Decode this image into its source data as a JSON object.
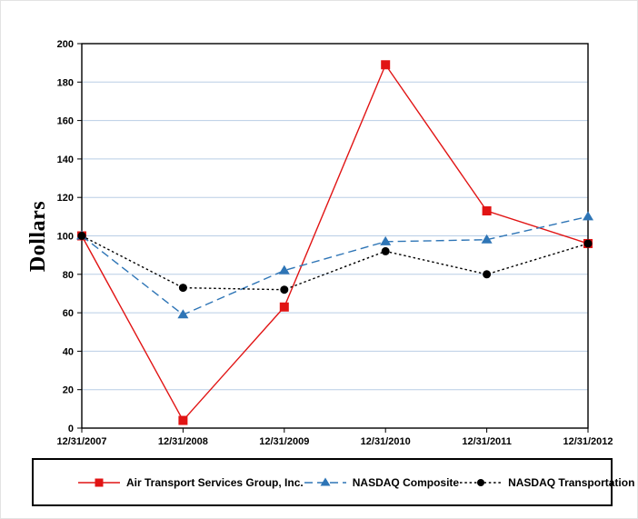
{
  "chart_data": {
    "type": "line",
    "title": "",
    "xlabel": "",
    "ylabel": "Dollars",
    "categories": [
      "12/31/2007",
      "12/31/2008",
      "12/31/2009",
      "12/31/2010",
      "12/31/2011",
      "12/31/2012"
    ],
    "series": [
      {
        "name": "Air Transport Services Group, Inc.",
        "values": [
          100,
          4,
          63,
          189,
          113,
          96
        ],
        "color": "#e11414",
        "line": "solid",
        "marker": "square"
      },
      {
        "name": "NASDAQ Composite",
        "values": [
          100,
          59,
          82,
          97,
          98,
          110
        ],
        "color": "#2e75b6",
        "line": "dashed",
        "marker": "triangle"
      },
      {
        "name": "NASDAQ Transportation",
        "values": [
          100,
          73,
          72,
          92,
          80,
          96
        ],
        "color": "#000000",
        "line": "dotted",
        "marker": "circle"
      }
    ],
    "ylim": [
      0,
      200
    ],
    "y_ticks": [
      0,
      20,
      40,
      60,
      80,
      100,
      120,
      140,
      160,
      180,
      200
    ],
    "grid": true,
    "gridline_color": "#b9cde5",
    "axis_color": "#000000",
    "legend_position": "bottom"
  }
}
